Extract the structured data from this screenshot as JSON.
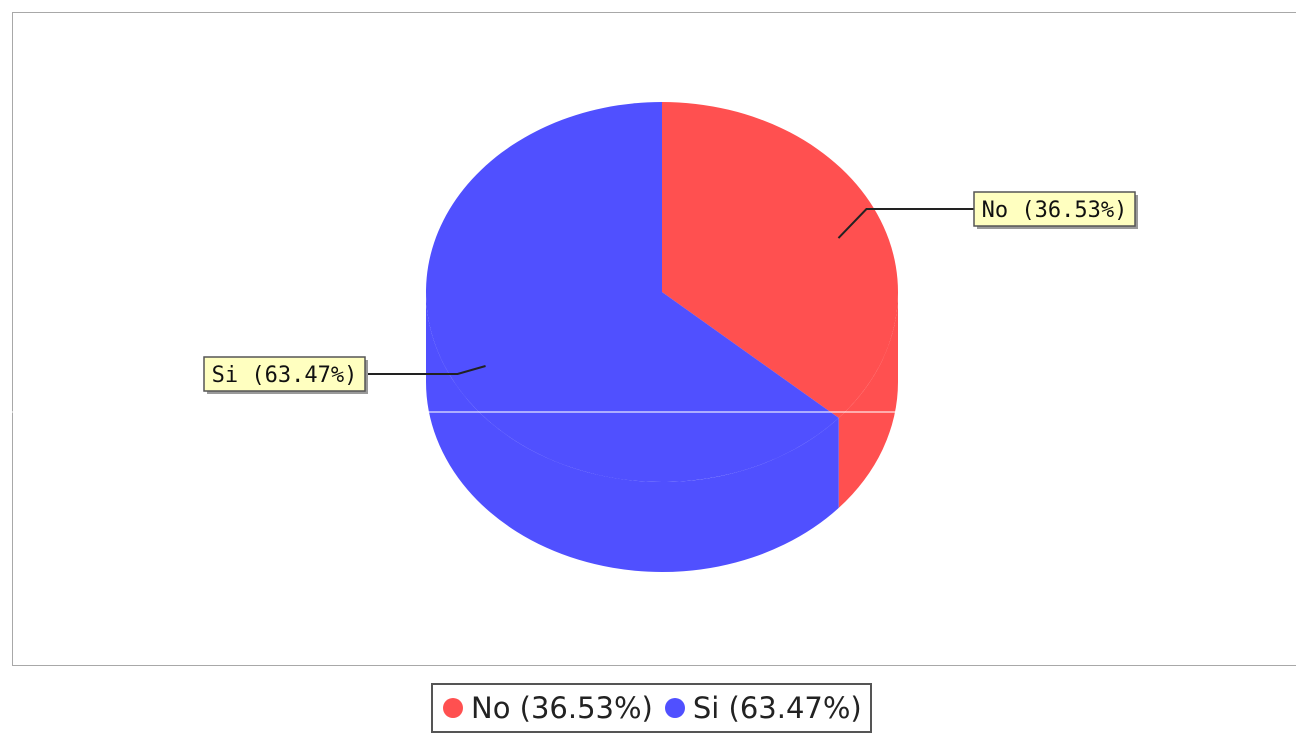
{
  "chart_data": {
    "type": "pie",
    "title": "",
    "slices": [
      {
        "label": "No",
        "value": 36.53,
        "display_label": "No (36.53%)",
        "color": "#ff5050"
      },
      {
        "label": "Si",
        "value": 63.47,
        "display_label": "Si (63.47%)",
        "color": "#5050ff"
      }
    ],
    "three_d": true,
    "legend_placement": "bottom",
    "label_box_color": "#ffffc0"
  },
  "legend": {
    "items": [
      {
        "label": "No (36.53%)",
        "color": "#ff5050"
      },
      {
        "label": "Si (63.47%)",
        "color": "#5050ff"
      }
    ]
  }
}
